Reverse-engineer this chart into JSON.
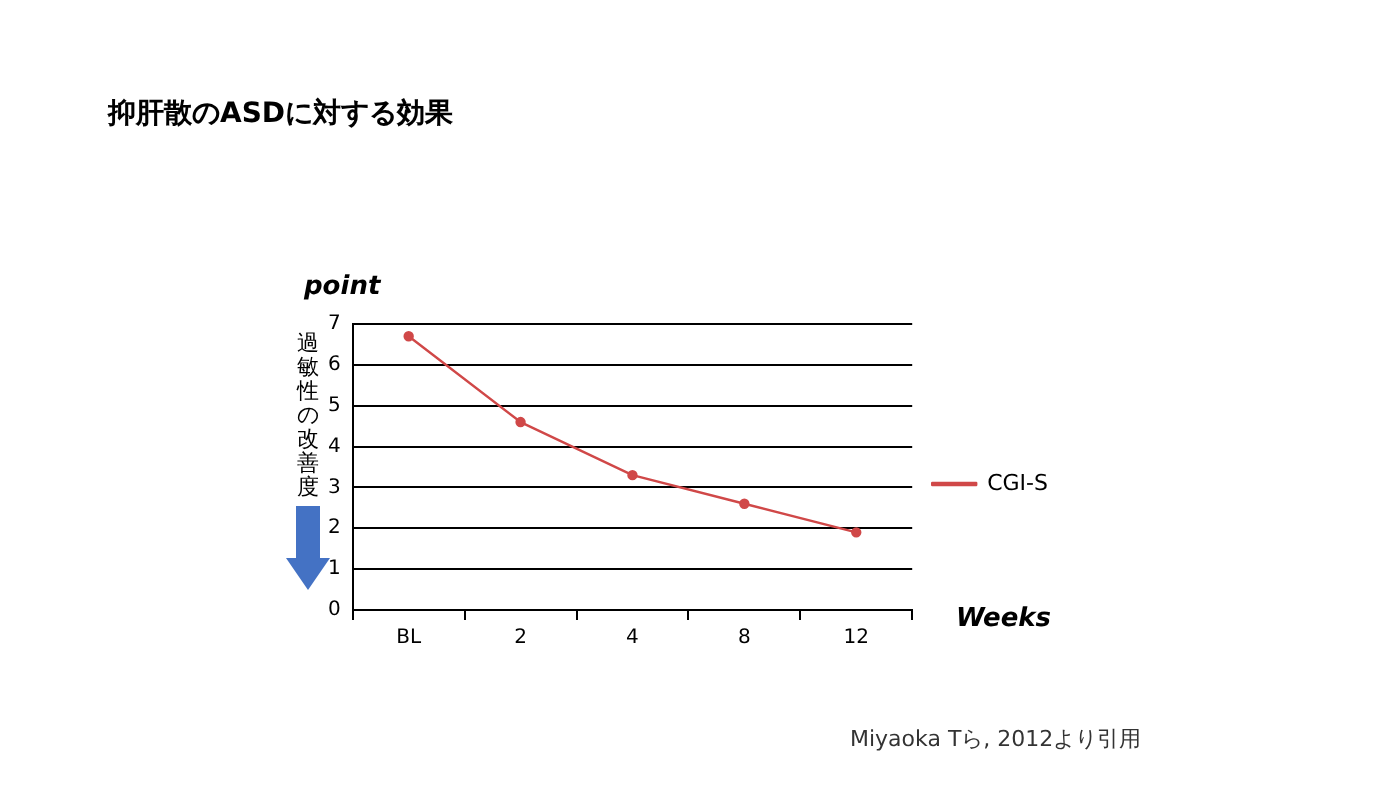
{
  "chart_data": {
    "type": "line",
    "title": "抑肝散のASDに対する効果",
    "xlabel": "Weeks",
    "ylabel": "point",
    "annotations": [
      "過敏性の改善度",
      "Miyaoka Tら, 2012より引用"
    ],
    "categories": [
      "BL",
      "2",
      "4",
      "8",
      "12"
    ],
    "series": [
      {
        "name": "CGI-S",
        "color": "#d04848",
        "values": [
          6.7,
          4.6,
          3.3,
          2.6,
          1.9
        ]
      }
    ],
    "ylim": [
      0,
      7
    ],
    "yticks": [
      0,
      1,
      2,
      3,
      4,
      5,
      6,
      7
    ],
    "grid": "y",
    "legend": "right",
    "marker": "circle",
    "line_style": "solid"
  }
}
